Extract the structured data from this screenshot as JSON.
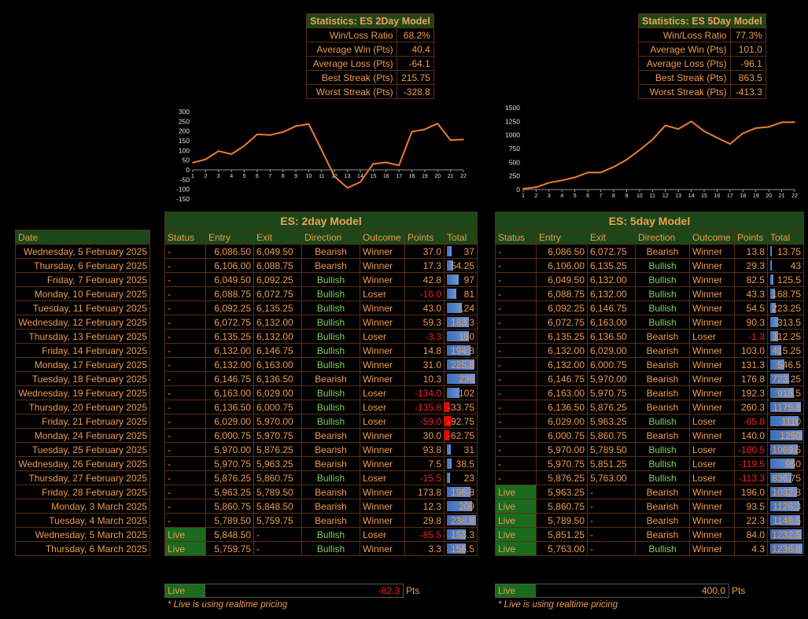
{
  "stats2": {
    "title": "Statistics: ES 2Day Model",
    "rows": [
      {
        "label": "Win/Loss Ratio",
        "value": "68.2%"
      },
      {
        "label": "Average Win (Pts)",
        "value": "40.4"
      },
      {
        "label": "Average Loss (Pts)",
        "value": "-64.1"
      },
      {
        "label": "Best Streak (Pts)",
        "value": "215.75"
      },
      {
        "label": "Worst Streak (Pts)",
        "value": "-328.8"
      }
    ]
  },
  "stats5": {
    "title": "Statistics: ES 5Day Model",
    "rows": [
      {
        "label": "Win/Loss Ratio",
        "value": "77.3%"
      },
      {
        "label": "Average Win (Pts)",
        "value": "101.0"
      },
      {
        "label": "Average Loss (Pts)",
        "value": "-96.1"
      },
      {
        "label": "Best Streak (Pts)",
        "value": "863.5"
      },
      {
        "label": "Worst Streak (Pts)",
        "value": "-413.3"
      }
    ]
  },
  "chart_data": [
    {
      "type": "line",
      "title": "",
      "x": [
        "1",
        "2",
        "3",
        "4",
        "5",
        "6",
        "7",
        "8",
        "9",
        "10",
        "11",
        "12",
        "13",
        "14",
        "15",
        "16",
        "17",
        "18",
        "19",
        "20",
        "21",
        "22"
      ],
      "yticks": [
        "300",
        "250",
        "200",
        "150",
        "100",
        "50",
        "0",
        "-50",
        "-100",
        "-150"
      ],
      "ylim": [
        -150,
        300
      ],
      "color": "#ed7d31",
      "grid": false,
      "series": [
        {
          "values": [
            37,
            54.25,
            97,
            81,
            124,
            183.3,
            180,
            194.8,
            225.8,
            236,
            102,
            -33.75,
            -92.75,
            -62.75,
            31,
            38.5,
            23,
            196.8,
            209,
            238.8,
            153.3,
            156.5
          ]
        }
      ]
    },
    {
      "type": "line",
      "title": "",
      "x": [
        "1",
        "2",
        "3",
        "4",
        "5",
        "6",
        "7",
        "8",
        "9",
        "10",
        "11",
        "12",
        "13",
        "14",
        "15",
        "16",
        "17",
        "18",
        "19",
        "20",
        "21",
        "22"
      ],
      "yticks": [
        "1500",
        "1250",
        "1000",
        "750",
        "500",
        "250",
        "0"
      ],
      "ylim": [
        0,
        1500
      ],
      "color": "#ed7d31",
      "grid": false,
      "series": [
        {
          "values": [
            13.75,
            43,
            125.5,
            168.75,
            223.25,
            313.5,
            312.25,
            415.25,
            546.5,
            723.25,
            915.5,
            1175.8,
            1110,
            1250,
            1069.5,
            950,
            836.75,
            1032.8,
            1126.3,
            1148.5,
            1232.5,
            1236.8
          ]
        }
      ]
    }
  ],
  "dates": {
    "header": "Date",
    "rows": [
      "Wednesday, 5 February 2025",
      "Thursday, 6 February 2025",
      "Friday, 7 February 2025",
      "Monday, 10 February 2025",
      "Tuesday, 11 February 2025",
      "Wednesday, 12 February 2025",
      "Thursday, 13 February 2025",
      "Friday, 14 February 2025",
      "Monday, 17 February 2025",
      "Tuesday, 18 February 2025",
      "Wednesday, 19 February 2025",
      "Thursday, 20 February 2025",
      "Friday, 21 February 2025",
      "Monday, 24 February 2025",
      "Tuesday, 25 February 2025",
      "Wednesday, 26 February 2025",
      "Thursday, 27 February 2025",
      "Friday, 28 February 2025",
      "Monday, 3 March 2025",
      "Tuesday, 4 March 2025",
      "Wednesday, 5 March 2025",
      "Thursday, 6 March 2025"
    ]
  },
  "model2": {
    "title": "ES: 2day Model",
    "headers": [
      "Status",
      "Entry",
      "Exit",
      "Direction",
      "Outcome",
      "Points",
      "Total"
    ],
    "maxTotal": 240,
    "rows": [
      {
        "status": "-",
        "entry": "6,086.50",
        "exit": "6,049.50",
        "direction": "Bearish",
        "outcome": "Winner",
        "points": "37.0",
        "total": "37",
        "tv": 37
      },
      {
        "status": "-",
        "entry": "6,106.00",
        "exit": "6,088.75",
        "direction": "Bearish",
        "outcome": "Winner",
        "points": "17.3",
        "total": "54.25",
        "tv": 54.25
      },
      {
        "status": "-",
        "entry": "6,049.50",
        "exit": "6,092.25",
        "direction": "Bullish",
        "outcome": "Winner",
        "points": "42.8",
        "total": "97",
        "tv": 97
      },
      {
        "status": "-",
        "entry": "6,088.75",
        "exit": "6,072.75",
        "direction": "Bullish",
        "outcome": "Loser",
        "points": "-16.0",
        "total": "81",
        "tv": 81
      },
      {
        "status": "-",
        "entry": "6,092.25",
        "exit": "6,135.25",
        "direction": "Bullish",
        "outcome": "Winner",
        "points": "43.0",
        "total": "124",
        "tv": 124
      },
      {
        "status": "-",
        "entry": "6,072.75",
        "exit": "6,132.00",
        "direction": "Bullish",
        "outcome": "Winner",
        "points": "59.3",
        "total": "183.3",
        "tv": 183.3
      },
      {
        "status": "-",
        "entry": "6,135.25",
        "exit": "6,132.00",
        "direction": "Bullish",
        "outcome": "Loser",
        "points": "-3.3",
        "total": "180",
        "tv": 180
      },
      {
        "status": "-",
        "entry": "6,132.00",
        "exit": "6,146.75",
        "direction": "Bullish",
        "outcome": "Winner",
        "points": "14.8",
        "total": "194.8",
        "tv": 194.8
      },
      {
        "status": "-",
        "entry": "6,132.00",
        "exit": "6,163.00",
        "direction": "Bullish",
        "outcome": "Winner",
        "points": "31.0",
        "total": "225.8",
        "tv": 225.8
      },
      {
        "status": "-",
        "entry": "6,146.75",
        "exit": "6,136.50",
        "direction": "Bearish",
        "outcome": "Winner",
        "points": "10.3",
        "total": "236",
        "tv": 236
      },
      {
        "status": "-",
        "entry": "6,163.00",
        "exit": "6,029.00",
        "direction": "Bullish",
        "outcome": "Loser",
        "points": "-134.0",
        "total": "102",
        "tv": 102
      },
      {
        "status": "-",
        "entry": "6,136.50",
        "exit": "6,000.75",
        "direction": "Bullish",
        "outcome": "Loser",
        "points": "-135.8",
        "total": "-33.75",
        "tv": -33.75
      },
      {
        "status": "-",
        "entry": "6,029.00",
        "exit": "5,970.00",
        "direction": "Bullish",
        "outcome": "Loser",
        "points": "-59.0",
        "total": "-92.75",
        "tv": -92.75
      },
      {
        "status": "-",
        "entry": "6,000.75",
        "exit": "5,970.75",
        "direction": "Bearish",
        "outcome": "Winner",
        "points": "30.0",
        "total": "-62.75",
        "tv": -62.75
      },
      {
        "status": "-",
        "entry": "5,970.00",
        "exit": "5,876.25",
        "direction": "Bearish",
        "outcome": "Winner",
        "points": "93.8",
        "total": "31",
        "tv": 31
      },
      {
        "status": "-",
        "entry": "5,970.75",
        "exit": "5,963.25",
        "direction": "Bearish",
        "outcome": "Winner",
        "points": "7.5",
        "total": "38.5",
        "tv": 38.5
      },
      {
        "status": "-",
        "entry": "5,876.25",
        "exit": "5,860.75",
        "direction": "Bullish",
        "outcome": "Loser",
        "points": "-15.5",
        "total": "23",
        "tv": 23
      },
      {
        "status": "-",
        "entry": "5,963.25",
        "exit": "5,789.50",
        "direction": "Bearish",
        "outcome": "Winner",
        "points": "173.8",
        "total": "196.8",
        "tv": 196.8
      },
      {
        "status": "-",
        "entry": "5,860.75",
        "exit": "5,848.50",
        "direction": "Bearish",
        "outcome": "Winner",
        "points": "12.3",
        "total": "209",
        "tv": 209
      },
      {
        "status": "-",
        "entry": "5,789.50",
        "exit": "5,759.75",
        "direction": "Bearish",
        "outcome": "Winner",
        "points": "29.8",
        "total": "238.8",
        "tv": 238.8
      },
      {
        "status": "Live",
        "entry": "5,848.50",
        "exit": "-",
        "direction": "Bullish",
        "outcome": "Loser",
        "points": "-85.5",
        "total": "153.3",
        "tv": 153.3
      },
      {
        "status": "Live",
        "entry": "5,759.75",
        "exit": "-",
        "direction": "Bullish",
        "outcome": "Winner",
        "points": "3.3",
        "total": "156.5",
        "tv": 156.5
      }
    ],
    "live": {
      "label": "Live",
      "value": "-82.3",
      "unit": "Pts",
      "note": "* Live is using realtime pricing"
    }
  },
  "model5": {
    "title": "ES: 5day Model",
    "headers": [
      "Status",
      "Entry",
      "Exit",
      "Direction",
      "Outcome",
      "Points",
      "Total"
    ],
    "maxTotal": 1250,
    "rows": [
      {
        "status": "-",
        "entry": "6,086.50",
        "exit": "6,072.75",
        "direction": "Bearish",
        "outcome": "Winner",
        "points": "13.8",
        "total": "13.75",
        "tv": 13.75
      },
      {
        "status": "-",
        "entry": "6,106.00",
        "exit": "6,135.25",
        "direction": "Bullish",
        "outcome": "Winner",
        "points": "29.3",
        "total": "43",
        "tv": 43
      },
      {
        "status": "-",
        "entry": "6,049.50",
        "exit": "6,132.00",
        "direction": "Bullish",
        "outcome": "Winner",
        "points": "82.5",
        "total": "125.5",
        "tv": 125.5
      },
      {
        "status": "-",
        "entry": "6,088.75",
        "exit": "6,132.00",
        "direction": "Bullish",
        "outcome": "Winner",
        "points": "43.3",
        "total": "168.75",
        "tv": 168.75
      },
      {
        "status": "-",
        "entry": "6,092.25",
        "exit": "6,146.75",
        "direction": "Bullish",
        "outcome": "Winner",
        "points": "54.5",
        "total": "223.25",
        "tv": 223.25
      },
      {
        "status": "-",
        "entry": "6,072.75",
        "exit": "6,163.00",
        "direction": "Bullish",
        "outcome": "Winner",
        "points": "90.3",
        "total": "313.5",
        "tv": 313.5
      },
      {
        "status": "-",
        "entry": "6,135.25",
        "exit": "6,136.50",
        "direction": "Bearish",
        "outcome": "Loser",
        "points": "-1.3",
        "total": "312.25",
        "tv": 312.25
      },
      {
        "status": "-",
        "entry": "6,132.00",
        "exit": "6,029.00",
        "direction": "Bearish",
        "outcome": "Winner",
        "points": "103.0",
        "total": "415.25",
        "tv": 415.25
      },
      {
        "status": "-",
        "entry": "6,132.00",
        "exit": "6,000.75",
        "direction": "Bearish",
        "outcome": "Winner",
        "points": "131.3",
        "total": "546.5",
        "tv": 546.5
      },
      {
        "status": "-",
        "entry": "6,146.75",
        "exit": "5,970.00",
        "direction": "Bearish",
        "outcome": "Winner",
        "points": "176.8",
        "total": "723.25",
        "tv": 723.25
      },
      {
        "status": "-",
        "entry": "6,163.00",
        "exit": "5,970.75",
        "direction": "Bearish",
        "outcome": "Winner",
        "points": "192.3",
        "total": "915.5",
        "tv": 915.5
      },
      {
        "status": "-",
        "entry": "6,136.50",
        "exit": "5,876.25",
        "direction": "Bearish",
        "outcome": "Winner",
        "points": "260.3",
        "total": "1175.8",
        "tv": 1175.8
      },
      {
        "status": "-",
        "entry": "6,029.00",
        "exit": "5,963.25",
        "direction": "Bullish",
        "outcome": "Loser",
        "points": "-65.8",
        "total": "1110",
        "tv": 1110
      },
      {
        "status": "-",
        "entry": "6,000.75",
        "exit": "5,860.75",
        "direction": "Bearish",
        "outcome": "Winner",
        "points": "140.0",
        "total": "1250",
        "tv": 1250
      },
      {
        "status": "-",
        "entry": "5,970.00",
        "exit": "5,789.50",
        "direction": "Bullish",
        "outcome": "Loser",
        "points": "-180.5",
        "total": "1069.5",
        "tv": 1069.5
      },
      {
        "status": "-",
        "entry": "5,970.75",
        "exit": "5,851.25",
        "direction": "Bullish",
        "outcome": "Loser",
        "points": "-119.5",
        "total": "950",
        "tv": 950
      },
      {
        "status": "-",
        "entry": "5,876.25",
        "exit": "5,763.00",
        "direction": "Bullish",
        "outcome": "Loser",
        "points": "-113.3",
        "total": "836.75",
        "tv": 836.75
      },
      {
        "status": "Live",
        "entry": "5,963.25",
        "exit": "-",
        "direction": "Bearish",
        "outcome": "Winner",
        "points": "196.0",
        "total": "1032.8",
        "tv": 1032.8
      },
      {
        "status": "Live",
        "entry": "5,860.75",
        "exit": "-",
        "direction": "Bearish",
        "outcome": "Winner",
        "points": "93.5",
        "total": "1126.3",
        "tv": 1126.3
      },
      {
        "status": "Live",
        "entry": "5,789.50",
        "exit": "-",
        "direction": "Bearish",
        "outcome": "Winner",
        "points": "22.3",
        "total": "1148.5",
        "tv": 1148.5
      },
      {
        "status": "Live",
        "entry": "5,851.25",
        "exit": "-",
        "direction": "Bearish",
        "outcome": "Winner",
        "points": "84.0",
        "total": "1232.5",
        "tv": 1232.5
      },
      {
        "status": "Live",
        "entry": "5,763.00",
        "exit": "-",
        "direction": "Bullish",
        "outcome": "Winner",
        "points": "4.3",
        "total": "1236.8",
        "tv": 1236.8
      }
    ],
    "live": {
      "label": "Live",
      "value": "400.0",
      "unit": "Pts",
      "note": "* Live is using realtime pricing"
    }
  }
}
